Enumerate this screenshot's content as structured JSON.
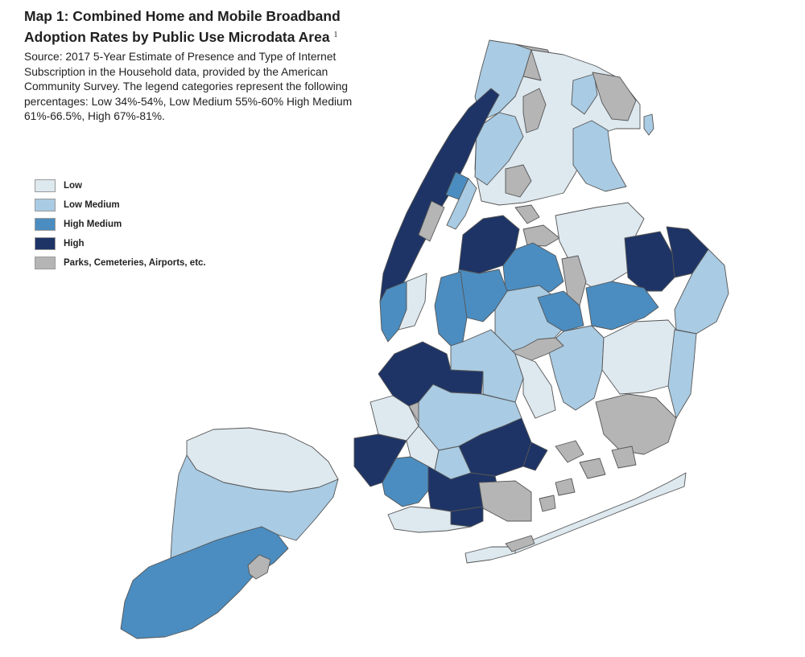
{
  "title_main": "Map 1: Combined Home and Mobile Broadband Adoption Rates by Public Use Microdata Area",
  "title_footnote": "1",
  "source": "Source: 2017 5-Year Estimate of Presence and Type of Internet Subscription in the Household data, provided by the American Community Survey. The legend categories represent the following percentages: Low 34%-54%, Low Medium 55%-60% High Medium 61%-66.5%, High 67%-81%.",
  "legend": [
    {
      "label": "Low",
      "color": "#dde8ef"
    },
    {
      "label": "Low Medium",
      "color": "#a9cbe3"
    },
    {
      "label": "High Medium",
      "color": "#4b8dc0"
    },
    {
      "label": "High",
      "color": "#1e3466"
    },
    {
      "label": "Parks, Cemeteries, Airports, etc.",
      "color": "#b5b5b5"
    }
  ],
  "colors": {
    "low": "#dde8ef",
    "low_medium": "#a9cbe3",
    "high_medium": "#4b8dc0",
    "high": "#1e3466",
    "parks": "#b5b5b5",
    "outline": "#555555"
  }
}
